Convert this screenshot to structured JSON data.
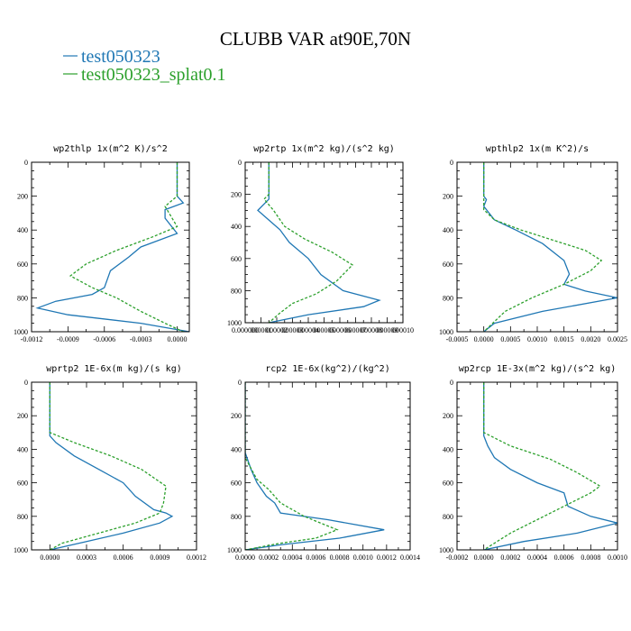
{
  "title": "CLUBB VAR at90E,70N",
  "legend": [
    {
      "label": "test050323",
      "color": "#1f77b4",
      "dash": "solid"
    },
    {
      "label": "test050323_splat0.1",
      "color": "#2ca02c",
      "dash": "dashed"
    }
  ],
  "chart_data": [
    {
      "type": "line",
      "title": "wp2thlp  1x(m^2 K)/s^2",
      "xlim": [
        -0.0012,
        0.0001
      ],
      "ylim": [
        1000,
        0
      ],
      "xticks": [
        -0.0012,
        -0.0009,
        -0.0006,
        -0.0003,
        0.0
      ],
      "xtick_labels": [
        "-0.0012",
        "-0.0009",
        "-0.0006",
        "-0.0003",
        "0.0000"
      ],
      "yticks": [
        0,
        200,
        400,
        600,
        800,
        1000
      ],
      "series": [
        {
          "name": "test050323",
          "color": "#1f77b4",
          "x": [
            0.0,
            0.0,
            5e-05,
            -0.0001,
            -0.0001,
            0.0,
            -0.0003,
            -0.0004,
            -0.00055,
            -0.0006,
            -0.0007,
            -0.001,
            -0.00115,
            -0.0009,
            -0.0003,
            0.0001
          ],
          "y": [
            0,
            200,
            240,
            280,
            330,
            420,
            500,
            560,
            640,
            740,
            780,
            820,
            860,
            900,
            950,
            1000
          ]
        },
        {
          "name": "test050323_splat0.1",
          "color": "#2ca02c",
          "x": [
            0.0,
            0.0,
            -0.0001,
            0.0,
            -0.0002,
            -0.0005,
            -0.00075,
            -0.00088,
            -0.0007,
            -0.0005,
            -0.0003,
            -0.0001,
            5e-05
          ],
          "y": [
            0,
            200,
            260,
            380,
            440,
            520,
            600,
            670,
            740,
            800,
            880,
            950,
            1000
          ]
        }
      ]
    },
    {
      "type": "line",
      "title": "wp2rtp  1x(m^2 kg)/(s^2 kg)",
      "xlim": [
        0.0,
        1e-05
      ],
      "ylim": [
        1000,
        0
      ],
      "xticks": [
        0.0,
        1e-06,
        2e-06,
        3e-06,
        4e-06,
        5e-06,
        6e-06,
        7e-06,
        8e-06,
        9e-06,
        1e-05
      ],
      "xtick_labels": [
        "0.000000",
        "000001",
        "000002",
        "000003",
        "000004",
        "000005",
        "000006",
        "000007",
        "000008",
        "000009",
        "000010"
      ],
      "yticks": [
        0,
        200,
        400,
        600,
        800,
        1000
      ],
      "series": [
        {
          "name": "test050323",
          "color": "#1f77b4",
          "x": [
            1.5e-06,
            1.5e-06,
            8e-07,
            1.5e-06,
            2.2e-06,
            2.8e-06,
            4e-06,
            4.8e-06,
            6.2e-06,
            8.5e-06,
            7.5e-06,
            4e-06,
            1.5e-06
          ],
          "y": [
            0,
            230,
            300,
            360,
            420,
            500,
            600,
            700,
            800,
            860,
            900,
            950,
            1000
          ]
        },
        {
          "name": "test050323_splat0.1",
          "color": "#2ca02c",
          "x": [
            1.5e-06,
            1.5e-06,
            1.2e-06,
            1.8e-06,
            2.5e-06,
            3.8e-06,
            5.5e-06,
            6.8e-06,
            5.8e-06,
            4.5e-06,
            3e-06,
            2.2e-06,
            1.5e-06
          ],
          "y": [
            0,
            200,
            230,
            300,
            400,
            480,
            560,
            640,
            740,
            820,
            880,
            940,
            1000
          ]
        }
      ]
    },
    {
      "type": "line",
      "title": "wpthlp2  1x(m K^2)/s",
      "xlim": [
        -0.0005,
        0.0025
      ],
      "ylim": [
        1000,
        0
      ],
      "xticks": [
        -0.0005,
        0.0,
        0.0005,
        0.001,
        0.0015,
        0.002,
        0.0025
      ],
      "xtick_labels": [
        "-0.0005",
        "0.0000",
        "0.0005",
        "0.0010",
        "0.0015",
        "0.0020",
        "0.0025"
      ],
      "yticks": [
        0,
        200,
        400,
        600,
        800,
        1000
      ],
      "series": [
        {
          "name": "test050323",
          "color": "#1f77b4",
          "x": [
            0.0,
            0.0,
            5e-05,
            0.0,
            0.0002,
            0.0006,
            0.0011,
            0.0015,
            0.0016,
            0.0015,
            0.0019,
            0.0025,
            0.0011,
            0.0002,
            0.0
          ],
          "y": [
            0,
            200,
            220,
            260,
            340,
            400,
            480,
            580,
            660,
            720,
            760,
            800,
            880,
            950,
            1000
          ]
        },
        {
          "name": "test050323_splat0.1",
          "color": "#2ca02c",
          "x": [
            0.0,
            0.0,
            0.0002,
            0.0007,
            0.0013,
            0.0019,
            0.0022,
            0.002,
            0.0015,
            0.0009,
            0.0004,
            0.0
          ],
          "y": [
            0,
            280,
            340,
            400,
            460,
            520,
            580,
            640,
            720,
            800,
            880,
            1000
          ]
        }
      ]
    },
    {
      "type": "line",
      "title": "wprtp2  1E-6x(m kg)/(s kg)",
      "xlim": [
        -0.00015,
        0.0012
      ],
      "ylim": [
        1000,
        0
      ],
      "xticks": [
        0.0,
        0.0003,
        0.0006,
        0.0009,
        0.0012
      ],
      "xtick_labels": [
        "0.0000",
        "0.0003",
        "0.0006",
        "0.0009",
        "0.0012"
      ],
      "yticks": [
        0,
        200,
        400,
        600,
        800,
        1000
      ],
      "series": [
        {
          "name": "test050323",
          "color": "#1f77b4",
          "x": [
            0.0,
            0.0,
            5e-05,
            0.0002,
            0.0004,
            0.0006,
            0.0007,
            0.00085,
            0.00095,
            0.001,
            0.0009,
            0.0006,
            0.0003,
            0.0
          ],
          "y": [
            0,
            320,
            360,
            440,
            520,
            600,
            680,
            760,
            780,
            800,
            840,
            900,
            950,
            1000
          ]
        },
        {
          "name": "test050323_splat0.1",
          "color": "#2ca02c",
          "x": [
            0.0,
            0.0,
            0.0002,
            0.0005,
            0.00075,
            0.00095,
            0.00093,
            0.0009,
            0.0007,
            0.0004,
            0.0001,
            0.0
          ],
          "y": [
            0,
            300,
            360,
            440,
            520,
            620,
            720,
            780,
            840,
            900,
            960,
            1000
          ]
        }
      ]
    },
    {
      "type": "line",
      "title": "rcp2  1E-6x(kg^2)/(kg^2)",
      "xlim": [
        0.0,
        0.0014
      ],
      "ylim": [
        1000,
        0
      ],
      "xticks": [
        0.0,
        0.0002,
        0.0004,
        0.0006,
        0.0008,
        0.001,
        0.0012,
        0.0014
      ],
      "xtick_labels": [
        "0.0000",
        "0.0002",
        "0.0004",
        "0.0006",
        "0.0008",
        "0.0010",
        "0.0012",
        "0.0014"
      ],
      "yticks": [
        0,
        200,
        400,
        600,
        800,
        1000
      ],
      "series": [
        {
          "name": "test050323",
          "color": "#1f77b4",
          "x": [
            0.0,
            0.0,
            5e-05,
            0.0001,
            0.00018,
            0.00025,
            0.0003,
            0.0007,
            0.00118,
            0.0008,
            0.0003,
            0.0
          ],
          "y": [
            0,
            420,
            520,
            600,
            680,
            720,
            780,
            820,
            880,
            930,
            970,
            1000
          ]
        },
        {
          "name": "test050323_splat0.1",
          "color": "#2ca02c",
          "x": [
            0.0,
            0.0,
            0.0001,
            0.0002,
            0.0003,
            0.0005,
            0.00078,
            0.0006,
            0.0003,
            0.0
          ],
          "y": [
            0,
            450,
            580,
            640,
            720,
            800,
            880,
            930,
            960,
            1000
          ]
        }
      ]
    },
    {
      "type": "line",
      "title": "wp2rcp  1E-3x(m^2 kg)/(s^2 kg)",
      "xlim": [
        -0.0002,
        0.001
      ],
      "ylim": [
        1000,
        0
      ],
      "xticks": [
        -0.0002,
        0.0,
        0.0002,
        0.0004,
        0.0006,
        0.0008,
        0.001
      ],
      "xtick_labels": [
        "-0.0002",
        "0.0000",
        "0.0002",
        "0.0004",
        "0.0006",
        "0.0008",
        "0.0010"
      ],
      "yticks": [
        0,
        200,
        400,
        600,
        800,
        1000
      ],
      "series": [
        {
          "name": "test050323",
          "color": "#1f77b4",
          "x": [
            0.0,
            0.0,
            3e-05,
            8e-05,
            0.0002,
            0.0004,
            0.0006,
            0.00063,
            0.0008,
            0.001,
            0.0007,
            0.0003,
            0.0
          ],
          "y": [
            0,
            320,
            380,
            450,
            520,
            600,
            660,
            740,
            800,
            840,
            900,
            950,
            1000
          ]
        },
        {
          "name": "test050323_splat0.1",
          "color": "#2ca02c",
          "x": [
            0.0,
            0.0,
            0.0002,
            0.0005,
            0.0007,
            0.00087,
            0.0008,
            0.0006,
            0.0004,
            0.0002,
            0.0
          ],
          "y": [
            0,
            300,
            380,
            460,
            540,
            620,
            660,
            740,
            820,
            900,
            1000
          ]
        }
      ]
    }
  ]
}
